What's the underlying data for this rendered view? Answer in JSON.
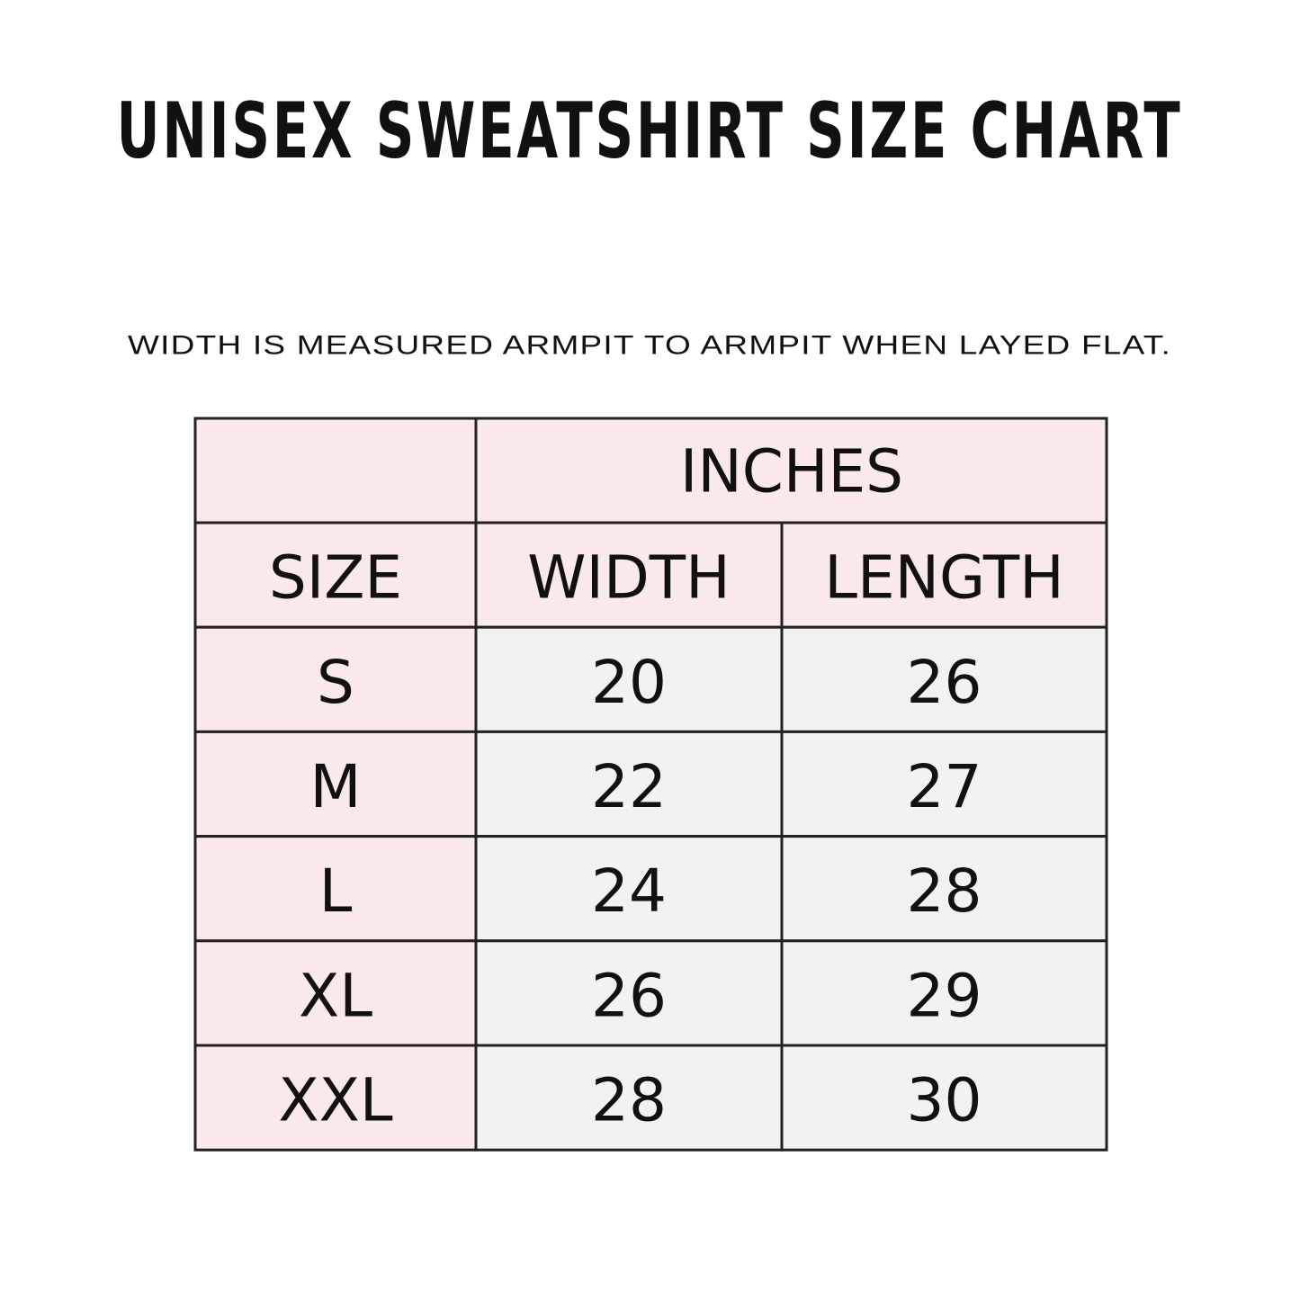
{
  "title": "UNISEX SWEATSHIRT SIZE CHART",
  "note": "WIDTH IS MEASURED ARMPIT TO ARMPIT WHEN LAYED FLAT.",
  "table": {
    "group_header": "INCHES",
    "headers": [
      "SIZE",
      "WIDTH",
      "LENGTH"
    ],
    "rows": [
      [
        "S",
        20,
        26
      ],
      [
        "M",
        22,
        27
      ],
      [
        "L",
        24,
        28
      ],
      [
        "XL",
        26,
        29
      ],
      [
        "XXL",
        28,
        30
      ]
    ]
  }
}
